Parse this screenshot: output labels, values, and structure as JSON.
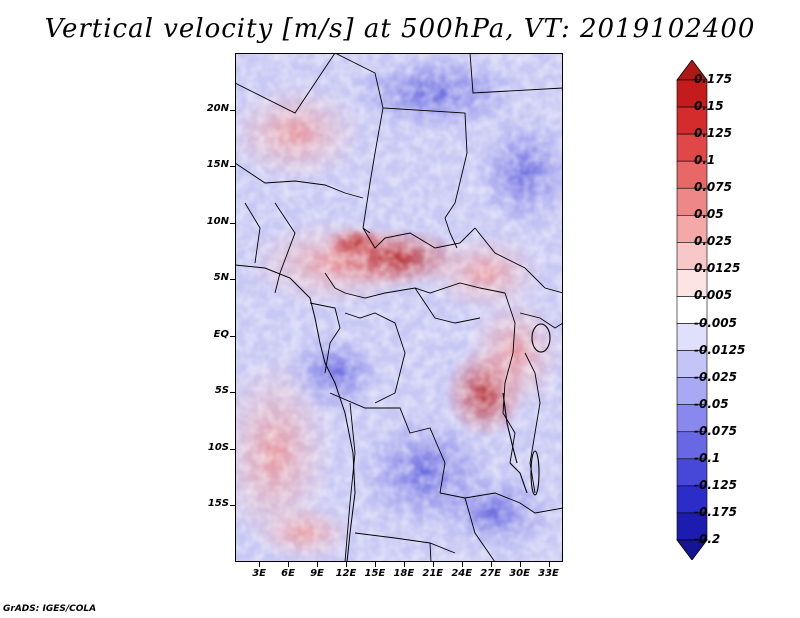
{
  "title": "Vertical velocity [m/s] at 500hPa, VT: 2019102400",
  "footer": "GrADS: IGES/COLA",
  "axes": {
    "y_ticks": [
      {
        "label": "20N",
        "lat": 20
      },
      {
        "label": "15N",
        "lat": 15
      },
      {
        "label": "10N",
        "lat": 10
      },
      {
        "label": "5N",
        "lat": 5
      },
      {
        "label": "EQ",
        "lat": 0
      },
      {
        "label": "5S",
        "lat": -5
      },
      {
        "label": "10S",
        "lat": -10
      },
      {
        "label": "15S",
        "lat": -15
      }
    ],
    "x_ticks": [
      {
        "label": "3E",
        "lon": 3
      },
      {
        "label": "6E",
        "lon": 6
      },
      {
        "label": "9E",
        "lon": 9
      },
      {
        "label": "12E",
        "lon": 12
      },
      {
        "label": "15E",
        "lon": 15
      },
      {
        "label": "18E",
        "lon": 18
      },
      {
        "label": "21E",
        "lon": 21
      },
      {
        "label": "24E",
        "lon": 24
      },
      {
        "label": "27E",
        "lon": 27
      },
      {
        "label": "30E",
        "lon": 30
      },
      {
        "label": "33E",
        "lon": 33
      }
    ],
    "lon_range": [
      0.5,
      34.5
    ],
    "lat_range": [
      -20,
      25
    ]
  },
  "colorbar": {
    "labels": [
      "0.175",
      "0.15",
      "0.125",
      "0.1",
      "0.075",
      "0.05",
      "0.025",
      "0.0125",
      "0.005",
      "-0.005",
      "-0.0125",
      "-0.025",
      "-0.05",
      "-0.075",
      "-0.1",
      "-0.125",
      "-0.175",
      "-0.2"
    ],
    "colors": [
      "#b01818",
      "#c41c1c",
      "#d42c2c",
      "#e04848",
      "#e86868",
      "#ee8888",
      "#f4a8a8",
      "#f8c8c8",
      "#fce4e4",
      "#ffffff",
      "#e0e0fc",
      "#c4c4f8",
      "#a8a8f4",
      "#8888ee",
      "#6868e4",
      "#4848d8",
      "#2c2cc8",
      "#1c1cb0",
      "#141494"
    ]
  }
}
